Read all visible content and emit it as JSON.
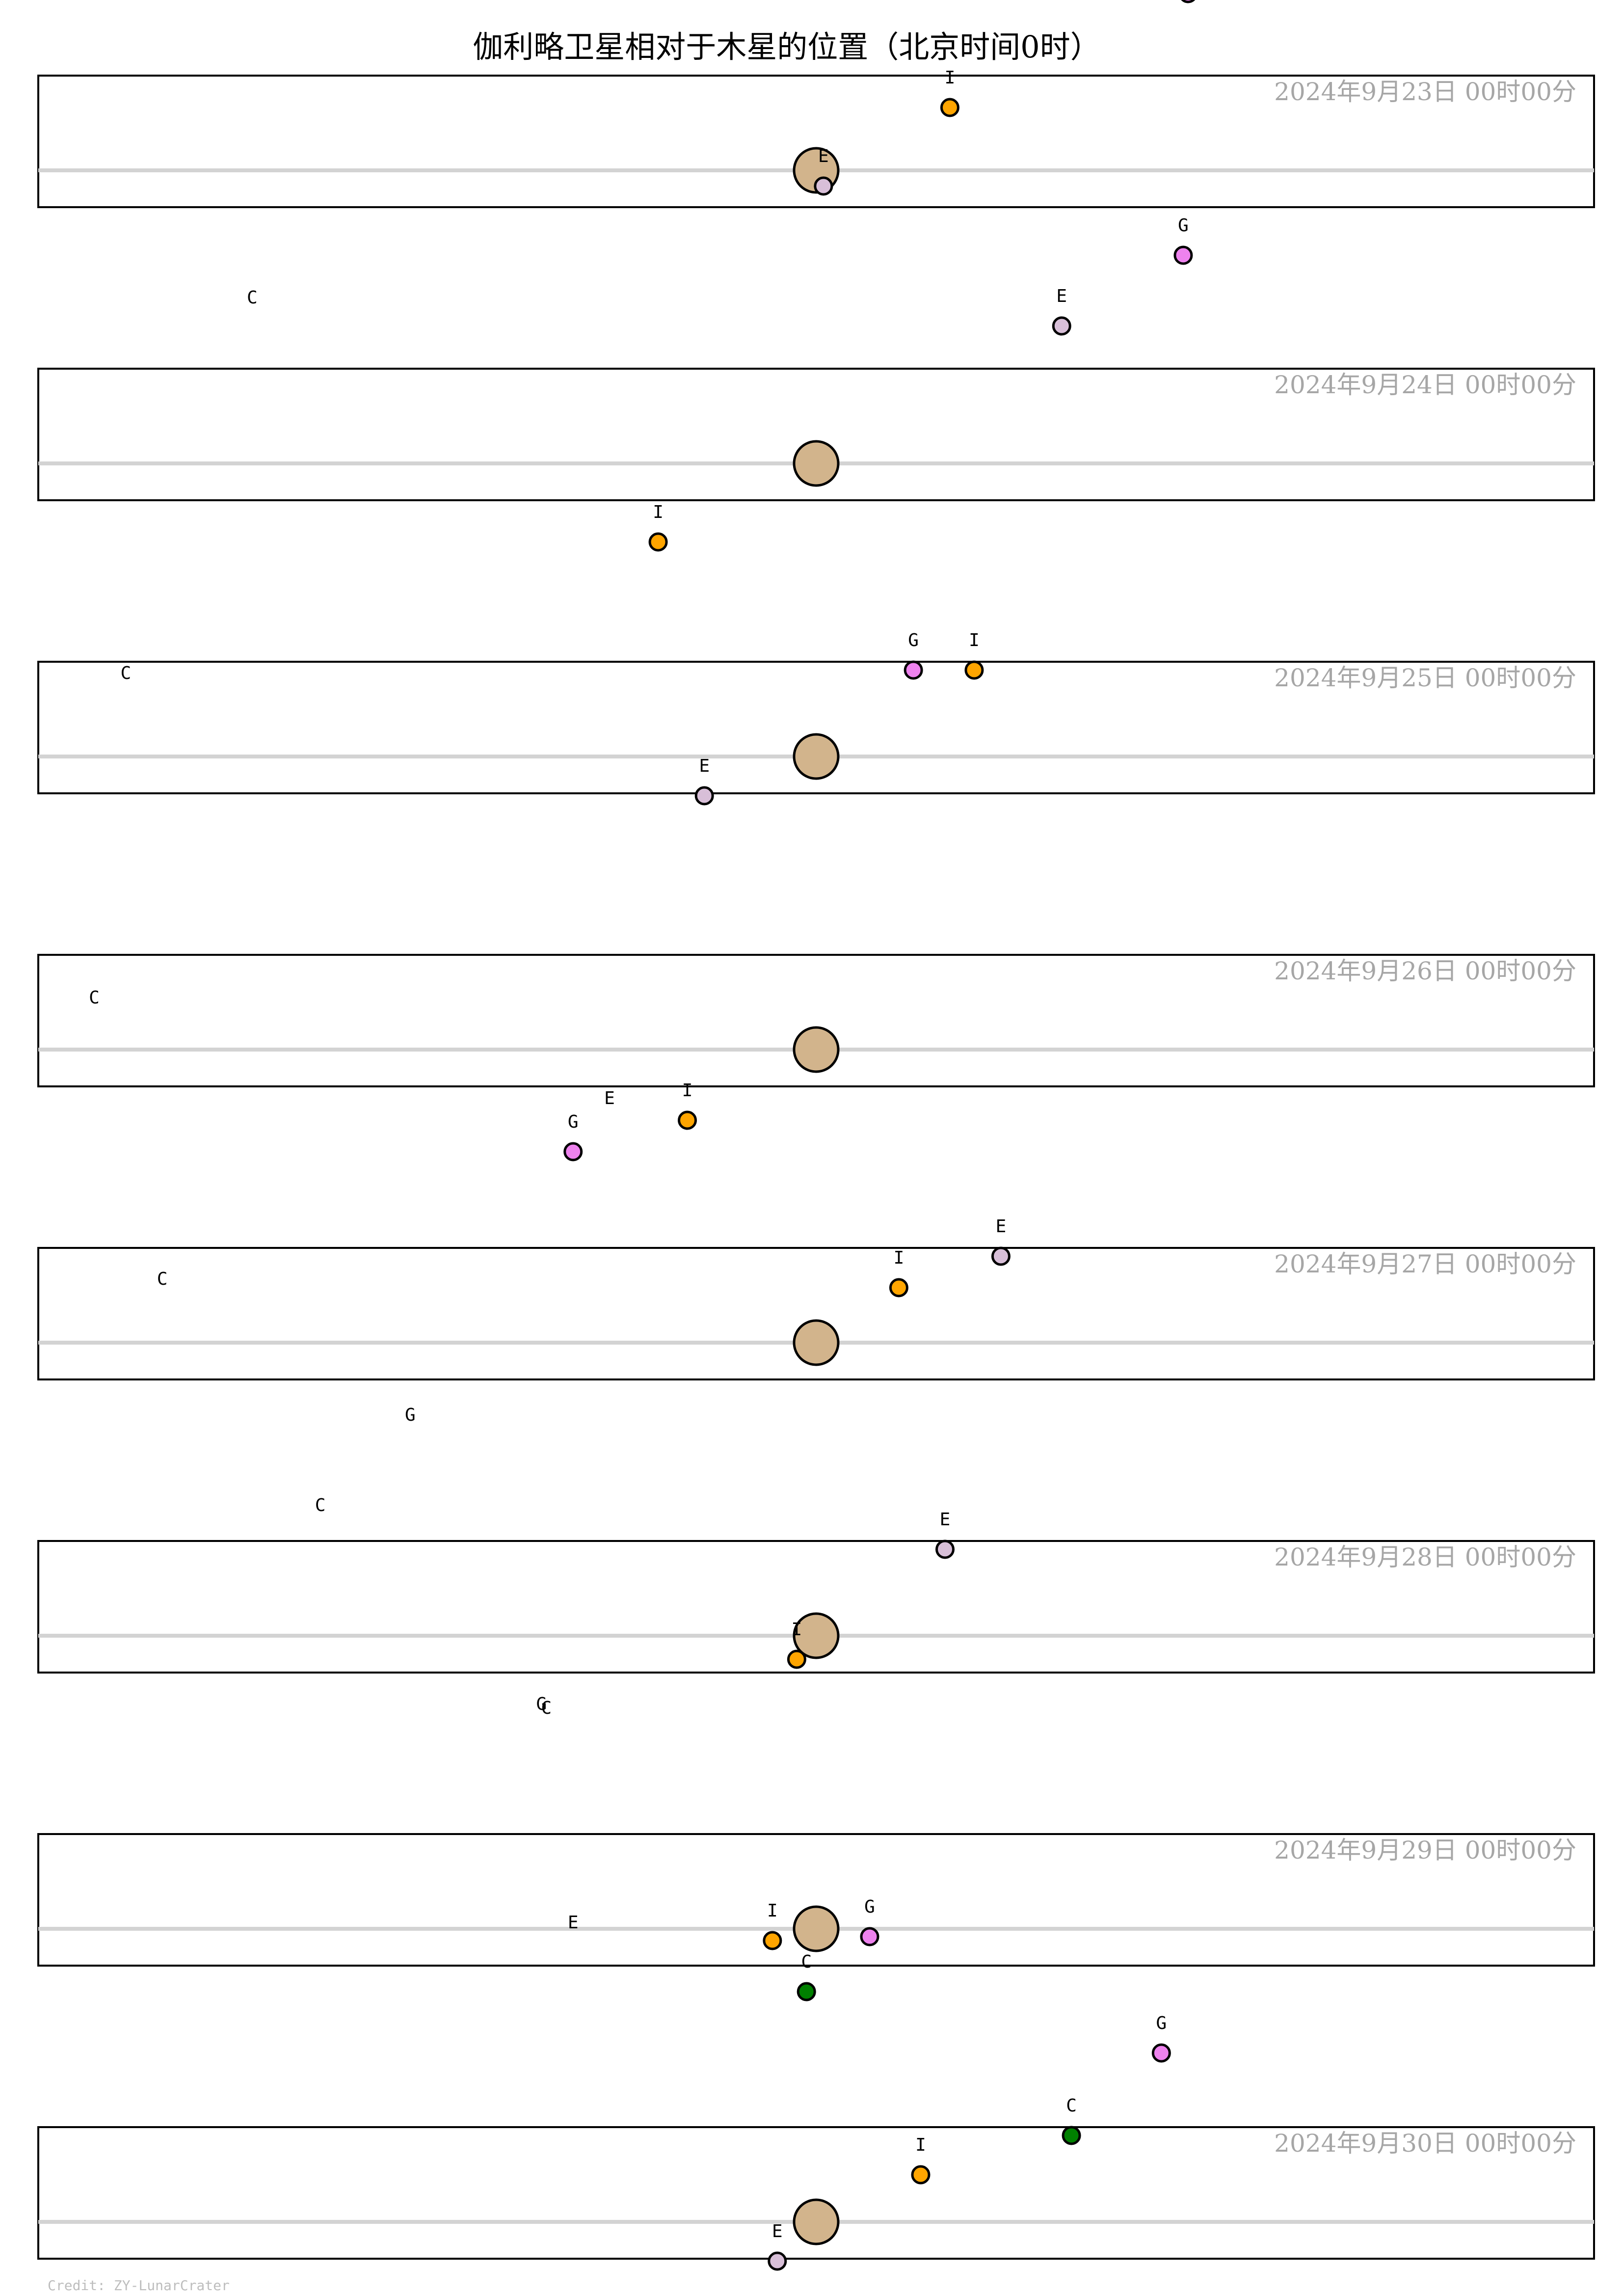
{
  "chart_data": {
    "type": "scatter",
    "title": "伽利略卫星相对于木星的位置（北京时间0时）",
    "credit": "Credit: ZY-LunarCrater",
    "xlim": [
      -32,
      32
    ],
    "ylim": [
      -1.5,
      6
    ],
    "series": [
      {
        "name": "I",
        "color": "#ffa500"
      },
      {
        "name": "E",
        "color": "#d8bfd8"
      },
      {
        "name": "G",
        "color": "#ee82ee"
      },
      {
        "name": "C",
        "color": "#008000"
      }
    ],
    "jupiter_color": "#d2b48c",
    "panels": [
      {
        "date": "2024年9月23日  00时00分",
        "moons": [
          {
            "name": "I",
            "x": 5.5,
            "y": 1.6,
            "dot": true
          },
          {
            "name": "E",
            "x": 0.3,
            "y": -0.4,
            "dot": true
          },
          {
            "name": "G",
            "x": 15.3,
            "y": 4.5,
            "dot": true
          },
          {
            "name": "C",
            "x": -23.2,
            "y": -4.0,
            "dot": false
          }
        ]
      },
      {
        "date": "2024年9月24日  00时00分",
        "moons": [
          {
            "name": "I",
            "x": -6.5,
            "y": -2.0,
            "dot": true
          },
          {
            "name": "E",
            "x": 10.1,
            "y": 3.5,
            "dot": true
          },
          {
            "name": "G",
            "x": 15.1,
            "y": 5.3,
            "dot": true
          },
          {
            "name": "C",
            "x": -28.4,
            "y": -6.1,
            "dot": false
          }
        ]
      },
      {
        "date": "2024年9月25日  00时00分",
        "moons": [
          {
            "name": "I",
            "x": 6.5,
            "y": 2.2,
            "dot": true
          },
          {
            "name": "E",
            "x": -4.6,
            "y": -1.0,
            "dot": true
          },
          {
            "name": "G",
            "x": 4.0,
            "y": 2.2,
            "dot": true
          },
          {
            "name": "C",
            "x": -29.7,
            "y": -6.9,
            "dot": false
          }
        ]
      },
      {
        "date": "2024年9月26日  00时00分",
        "moons": [
          {
            "name": "I",
            "x": -5.3,
            "y": -1.8,
            "dot": true
          },
          {
            "name": "E",
            "x": -8.5,
            "y": -2.0,
            "dot": false
          },
          {
            "name": "G",
            "x": -10.0,
            "y": -2.6,
            "dot": true
          },
          {
            "name": "C",
            "x": -26.9,
            "y": -6.6,
            "dot": false
          }
        ]
      },
      {
        "date": "2024年9月27日  00时00分",
        "moons": [
          {
            "name": "I",
            "x": 3.4,
            "y": 1.4,
            "dot": true
          },
          {
            "name": "E",
            "x": 7.6,
            "y": 2.2,
            "dot": true
          },
          {
            "name": "G",
            "x": -16.7,
            "y": -2.6,
            "dot": false
          },
          {
            "name": "C",
            "x": -20.4,
            "y": -4.9,
            "dot": false
          }
        ]
      },
      {
        "date": "2024年9月28日  00时00分",
        "moons": [
          {
            "name": "I",
            "x": -0.8,
            "y": -0.6,
            "dot": true
          },
          {
            "name": "E",
            "x": 5.3,
            "y": 2.2,
            "dot": true
          },
          {
            "name": "G",
            "x": -11.3,
            "y": -2.5,
            "dot": false
          },
          {
            "name": "C",
            "x": -11.1,
            "y": -2.6,
            "dot": false
          }
        ]
      },
      {
        "date": "2024年9月29日  00时00分",
        "moons": [
          {
            "name": "I",
            "x": -1.8,
            "y": -0.3,
            "dot": true
          },
          {
            "name": "E",
            "x": -10.0,
            "y": -0.6,
            "dot": false
          },
          {
            "name": "G",
            "x": 2.2,
            "y": -0.2,
            "dot": true
          },
          {
            "name": "C",
            "x": -0.4,
            "y": -1.6,
            "dot": true
          }
        ]
      },
      {
        "date": "2024年9月30日  00时00分",
        "moons": [
          {
            "name": "I",
            "x": 4.3,
            "y": 1.2,
            "dot": true
          },
          {
            "name": "E",
            "x": -1.6,
            "y": -1.0,
            "dot": true
          },
          {
            "name": "G",
            "x": 14.2,
            "y": 4.3,
            "dot": true
          },
          {
            "name": "C",
            "x": 10.5,
            "y": 2.2,
            "dot": true
          }
        ]
      }
    ]
  }
}
